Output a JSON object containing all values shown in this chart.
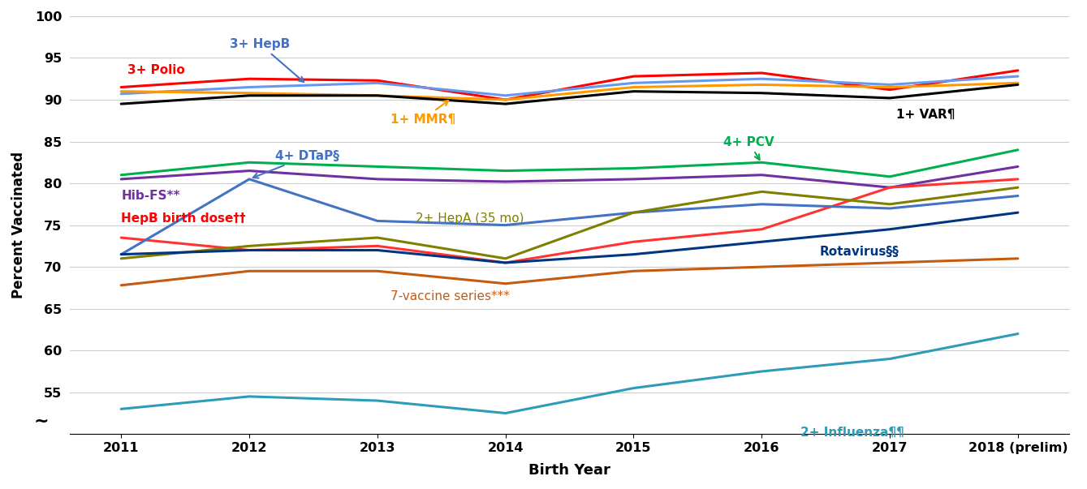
{
  "x_labels": [
    "2011",
    "2012",
    "2013",
    "2014",
    "2015",
    "2016",
    "2017",
    "2018 (prelim)"
  ],
  "x_values": [
    2011,
    2012,
    2013,
    2014,
    2015,
    2016,
    2017,
    2018
  ],
  "series": [
    {
      "name": "3+ Polio",
      "color": "#FF0000",
      "values": [
        91.5,
        92.5,
        92.3,
        90.0,
        92.8,
        93.2,
        91.2,
        93.5
      ]
    },
    {
      "name": "3+ HepB",
      "color": "#6699EE",
      "values": [
        90.7,
        91.5,
        92.0,
        90.5,
        92.0,
        92.5,
        91.8,
        92.8
      ]
    },
    {
      "name": "1+ MMR",
      "color": "#FF9900",
      "values": [
        91.0,
        90.8,
        90.5,
        90.0,
        91.5,
        91.8,
        91.5,
        92.0
      ]
    },
    {
      "name": "1+ VAR",
      "color": "#000000",
      "values": [
        89.5,
        90.5,
        90.5,
        89.5,
        91.0,
        90.8,
        90.2,
        91.8
      ]
    },
    {
      "name": "4+ PCV",
      "color": "#00B050",
      "values": [
        81.0,
        82.5,
        82.0,
        81.5,
        81.8,
        82.5,
        80.8,
        84.0
      ]
    },
    {
      "name": "Hib-FS",
      "color": "#7030A0",
      "values": [
        80.5,
        81.5,
        80.5,
        80.2,
        80.5,
        81.0,
        79.5,
        82.0
      ]
    },
    {
      "name": "HepB birth dose",
      "color": "#FF3333",
      "values": [
        73.5,
        72.0,
        72.5,
        70.5,
        73.0,
        74.5,
        79.5,
        80.5
      ]
    },
    {
      "name": "4+ DTaP",
      "color": "#4472C4",
      "values": [
        71.5,
        80.5,
        75.5,
        75.0,
        76.5,
        77.5,
        77.0,
        78.5
      ]
    },
    {
      "name": "2+ HepA (35 mo)",
      "color": "#7F7F00",
      "values": [
        71.0,
        72.5,
        73.5,
        71.0,
        76.5,
        79.0,
        77.5,
        79.5
      ]
    },
    {
      "name": "Rotavirus",
      "color": "#003580",
      "values": [
        71.5,
        72.0,
        72.0,
        70.5,
        71.5,
        73.0,
        74.5,
        76.5
      ]
    },
    {
      "name": "7-vaccine series",
      "color": "#C55A11",
      "values": [
        67.8,
        69.5,
        69.5,
        68.0,
        69.5,
        70.0,
        70.5,
        71.0
      ]
    },
    {
      "name": "2+ Influenza",
      "color": "#2E9CB8",
      "values": [
        53.0,
        54.5,
        54.0,
        52.5,
        55.5,
        57.5,
        59.0,
        62.0
      ]
    }
  ],
  "annotations": [
    {
      "label": "3+ Polio",
      "xd": 2011.05,
      "yd": 93.5,
      "color": "#FF0000",
      "bold": true,
      "fs": 11,
      "arrow": false
    },
    {
      "label": "3+ HepB",
      "xd": 2011.85,
      "yd": 96.2,
      "color": "#4472C4",
      "bold": true,
      "fs": 11,
      "arrow": true,
      "axd": 2012.45,
      "ayd": 91.8
    },
    {
      "label": "1+ MMR¶",
      "xd": 2013.1,
      "yd": 87.2,
      "color": "#FF9900",
      "bold": true,
      "fs": 11,
      "arrow": true,
      "axd": 2013.58,
      "ayd": 90.2
    },
    {
      "label": "1+ VAR¶",
      "xd": 2017.05,
      "yd": 88.2,
      "color": "#000000",
      "bold": true,
      "fs": 11,
      "arrow": false
    },
    {
      "label": "4+ PCV",
      "xd": 2015.7,
      "yd": 84.5,
      "color": "#00B050",
      "bold": true,
      "fs": 11,
      "arrow": true,
      "axd": 2016.0,
      "ayd": 82.4
    },
    {
      "label": "Hib-FS**",
      "xd": 2011.0,
      "yd": 78.5,
      "color": "#7030A0",
      "bold": true,
      "fs": 11,
      "arrow": false
    },
    {
      "label": "HepB birth dose††",
      "xd": 2011.0,
      "yd": 75.8,
      "color": "#FF0000",
      "bold": true,
      "fs": 11,
      "arrow": false
    },
    {
      "label": "4+ DTaP§",
      "xd": 2012.2,
      "yd": 82.8,
      "color": "#4472C4",
      "bold": true,
      "fs": 11,
      "arrow": true,
      "axd": 2012.0,
      "ayd": 80.5
    },
    {
      "label": "2+ HepA (35 mo)",
      "xd": 2013.3,
      "yd": 75.8,
      "color": "#7F7F00",
      "bold": false,
      "fs": 11,
      "arrow": false
    },
    {
      "label": "Rotavirus§§",
      "xd": 2016.45,
      "yd": 71.8,
      "color": "#003580",
      "bold": true,
      "fs": 11,
      "arrow": false
    },
    {
      "label": "7-vaccine series***",
      "xd": 2013.1,
      "yd": 66.5,
      "color": "#C55A11",
      "bold": false,
      "fs": 11,
      "arrow": false
    },
    {
      "label": "2+ Influenza¶¶",
      "xd": 2016.3,
      "yd": 50.2,
      "color": "#2E9CB8",
      "bold": true,
      "fs": 11,
      "arrow": false
    }
  ],
  "ylim": [
    50,
    100
  ],
  "yticks": [
    55,
    60,
    65,
    70,
    75,
    80,
    85,
    90,
    95,
    100
  ],
  "ylabel": "Percent Vaccinated",
  "xlabel": "Birth Year",
  "bg_color": "#FFFFFF",
  "grid_color": "#CCCCCC"
}
